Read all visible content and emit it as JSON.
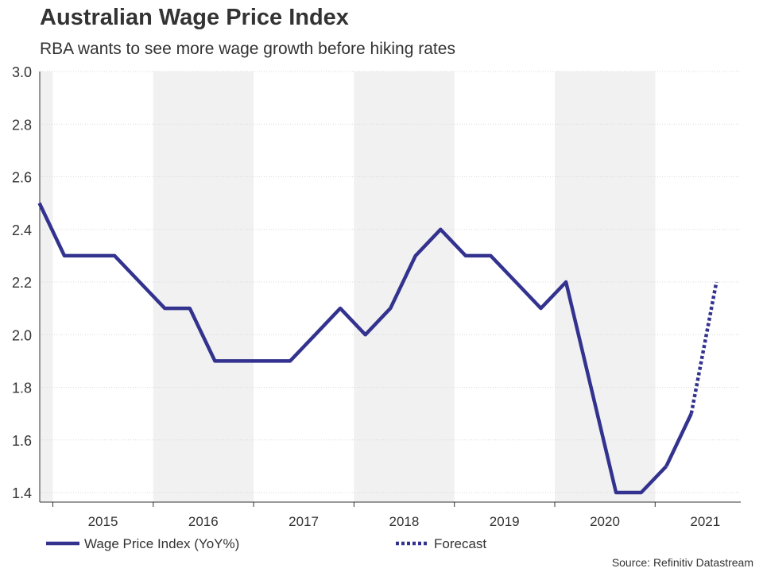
{
  "header": {
    "title": "Australian Wage Price Index",
    "subtitle": "RBA wants to see more wage growth before hiking rates"
  },
  "footer": {
    "source": "Source: Refinitiv Datastream"
  },
  "colors": {
    "series": "#33338f",
    "band": "#f1f1f1",
    "grid": "#d9d9d9",
    "axis": "#333333"
  },
  "chart_data": {
    "type": "line",
    "title": "Australian Wage Price Index",
    "subtitle": "RBA wants to see more wage growth before hiking rates",
    "xlabel": "",
    "ylabel": "",
    "ylim": [
      1.4,
      3.0
    ],
    "yticks": [
      "3.0",
      "2.8",
      "2.6",
      "2.4",
      "2.2",
      "2.0",
      "1.8",
      "1.6",
      "1.4"
    ],
    "year_labels": [
      "2015",
      "2016",
      "2017",
      "2018",
      "2019",
      "2020",
      "2021"
    ],
    "grid": true,
    "legend_position": "bottom",
    "series": [
      {
        "name": "Wage Price Index (YoY%)",
        "style": "solid",
        "x": [
          "2014 Q4",
          "2015 Q1",
          "2015 Q2",
          "2015 Q3",
          "2015 Q4",
          "2016 Q1",
          "2016 Q2",
          "2016 Q3",
          "2016 Q4",
          "2017 Q1",
          "2017 Q2",
          "2017 Q3",
          "2017 Q4",
          "2018 Q1",
          "2018 Q2",
          "2018 Q3",
          "2018 Q4",
          "2019 Q1",
          "2019 Q2",
          "2019 Q3",
          "2019 Q4",
          "2020 Q1",
          "2020 Q2",
          "2020 Q3",
          "2020 Q4",
          "2021 Q1"
        ],
        "values": [
          2.5,
          2.3,
          2.3,
          2.3,
          2.2,
          2.1,
          2.1,
          1.9,
          1.9,
          1.9,
          1.9,
          2.0,
          2.1,
          2.0,
          2.1,
          2.3,
          2.4,
          2.3,
          2.3,
          2.2,
          2.1,
          2.2,
          1.8,
          1.4,
          1.4,
          1.5
        ]
      },
      {
        "name": "Wage Price Index (YoY%)",
        "style": "solid-end",
        "x": [
          "2021 Q1",
          "2021 Q2"
        ],
        "values": [
          1.5,
          1.7
        ]
      },
      {
        "name": "Forecast",
        "style": "dotted",
        "x": [
          "2021 Q2",
          "2021 Q3"
        ],
        "values": [
          1.7,
          2.2
        ]
      }
    ],
    "legend": [
      "Wage Price Index (YoY%)",
      "Forecast"
    ]
  }
}
